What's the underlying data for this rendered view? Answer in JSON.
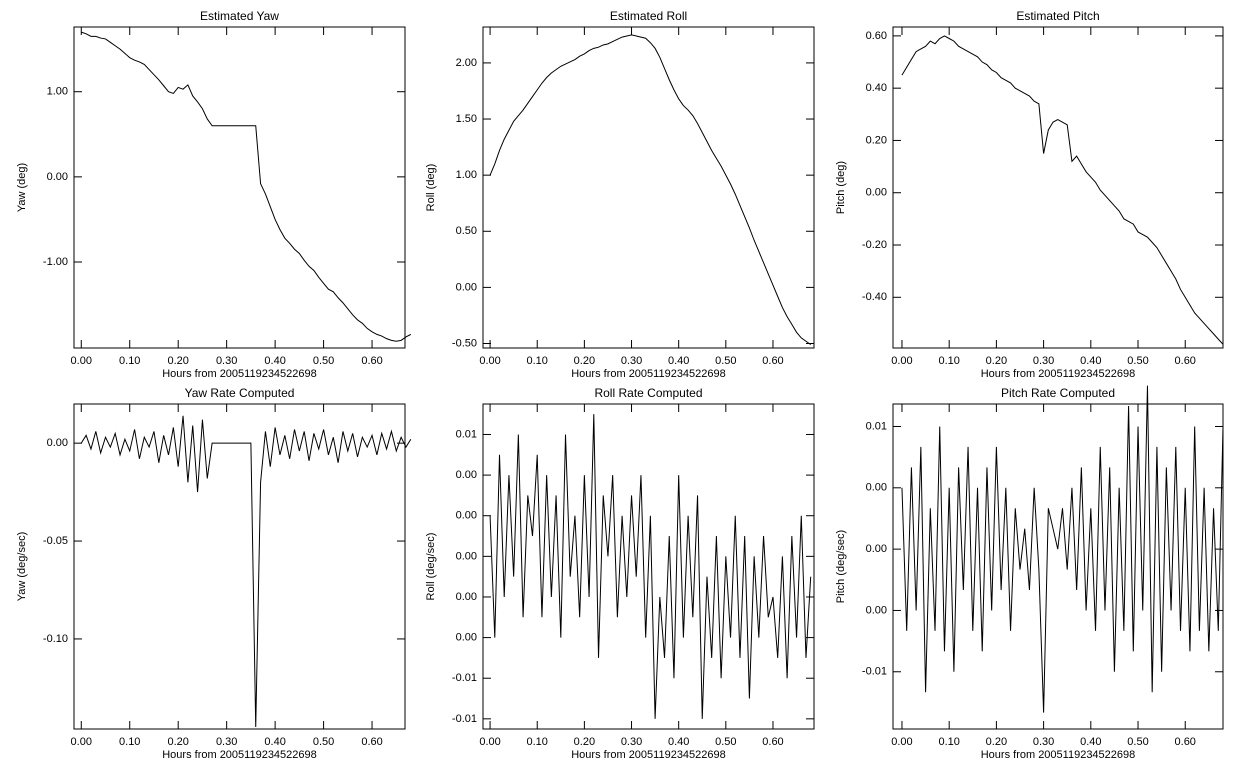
{
  "chart_data": [
    {
      "type": "line",
      "title": "Estimated Yaw",
      "xlabel": "Hours from 2005119234522698",
      "ylabel": "Yaw (deg)",
      "x": [
        0,
        0.01,
        0.02,
        0.03,
        0.04,
        0.05,
        0.06,
        0.07,
        0.08,
        0.09,
        0.1,
        0.11,
        0.12,
        0.13,
        0.14,
        0.15,
        0.16,
        0.17,
        0.18,
        0.19,
        0.2,
        0.21,
        0.22,
        0.23,
        0.24,
        0.25,
        0.26,
        0.27,
        0.28,
        0.29,
        0.3,
        0.31,
        0.32,
        0.33,
        0.34,
        0.35,
        0.36,
        0.37,
        0.38,
        0.39,
        0.4,
        0.41,
        0.42,
        0.43,
        0.44,
        0.45,
        0.46,
        0.47,
        0.48,
        0.49,
        0.5,
        0.51,
        0.52,
        0.53,
        0.54,
        0.55,
        0.56,
        0.57,
        0.58,
        0.59,
        0.6,
        0.61,
        0.62,
        0.63,
        0.64,
        0.65,
        0.66,
        0.67,
        0.68
      ],
      "values": [
        1.7,
        1.68,
        1.65,
        1.65,
        1.63,
        1.62,
        1.58,
        1.54,
        1.5,
        1.45,
        1.4,
        1.37,
        1.35,
        1.32,
        1.26,
        1.2,
        1.14,
        1.07,
        1.0,
        0.98,
        1.05,
        1.03,
        1.08,
        0.95,
        0.88,
        0.8,
        0.68,
        0.6,
        0.6,
        0.6,
        0.6,
        0.6,
        0.6,
        0.6,
        0.6,
        0.6,
        0.6,
        -0.08,
        -0.2,
        -0.35,
        -0.5,
        -0.62,
        -0.72,
        -0.78,
        -0.85,
        -0.9,
        -0.98,
        -1.05,
        -1.1,
        -1.18,
        -1.25,
        -1.32,
        -1.35,
        -1.42,
        -1.48,
        -1.55,
        -1.62,
        -1.68,
        -1.72,
        -1.78,
        -1.82,
        -1.85,
        -1.87,
        -1.9,
        -1.92,
        -1.93,
        -1.92,
        -1.88,
        -1.85
      ],
      "color": "#000000",
      "xlim": [
        -0.015,
        0.668
      ],
      "ylim": [
        -2.01,
        1.76
      ],
      "xticks": [
        {
          "value": 0,
          "label": "0.00"
        },
        {
          "value": 0.1,
          "label": "0.10"
        },
        {
          "value": 0.2,
          "label": "0.20"
        },
        {
          "value": 0.3,
          "label": "0.30"
        },
        {
          "value": 0.4,
          "label": "0.40"
        },
        {
          "value": 0.5,
          "label": "0.50"
        },
        {
          "value": 0.6,
          "label": "0.60"
        }
      ],
      "yticks": [
        {
          "value": 1,
          "label": "1.00"
        },
        {
          "value": 0,
          "label": "0.00"
        },
        {
          "value": -1,
          "label": "-1.00"
        }
      ]
    },
    {
      "type": "line",
      "title": "Estimated Roll",
      "xlabel": "Hours from 2005119234522698",
      "ylabel": "Roll (deg)",
      "x": [
        0,
        0.01,
        0.02,
        0.03,
        0.04,
        0.05,
        0.06,
        0.07,
        0.08,
        0.09,
        0.1,
        0.11,
        0.12,
        0.13,
        0.14,
        0.15,
        0.16,
        0.17,
        0.18,
        0.19,
        0.2,
        0.21,
        0.22,
        0.23,
        0.24,
        0.25,
        0.26,
        0.27,
        0.28,
        0.29,
        0.3,
        0.31,
        0.32,
        0.33,
        0.34,
        0.35,
        0.36,
        0.37,
        0.38,
        0.39,
        0.4,
        0.41,
        0.42,
        0.43,
        0.44,
        0.45,
        0.46,
        0.47,
        0.48,
        0.49,
        0.5,
        0.51,
        0.52,
        0.53,
        0.54,
        0.55,
        0.56,
        0.57,
        0.58,
        0.59,
        0.6,
        0.61,
        0.62,
        0.63,
        0.64,
        0.65,
        0.66,
        0.67,
        0.68
      ],
      "values": [
        1.0,
        1.1,
        1.22,
        1.32,
        1.4,
        1.48,
        1.53,
        1.58,
        1.64,
        1.7,
        1.76,
        1.82,
        1.87,
        1.91,
        1.94,
        1.97,
        1.99,
        2.01,
        2.03,
        2.06,
        2.08,
        2.11,
        2.13,
        2.14,
        2.16,
        2.17,
        2.19,
        2.21,
        2.23,
        2.24,
        2.25,
        2.24,
        2.23,
        2.22,
        2.18,
        2.13,
        2.05,
        1.95,
        1.85,
        1.76,
        1.68,
        1.62,
        1.58,
        1.53,
        1.46,
        1.38,
        1.3,
        1.22,
        1.15,
        1.08,
        1.0,
        0.92,
        0.83,
        0.73,
        0.63,
        0.53,
        0.42,
        0.32,
        0.22,
        0.12,
        0.02,
        -0.08,
        -0.18,
        -0.26,
        -0.33,
        -0.4,
        -0.45,
        -0.48,
        -0.51
      ],
      "color": "#000000",
      "xlim": [
        -0.015,
        0.687
      ],
      "ylim": [
        -0.54,
        2.32
      ],
      "xticks": [
        {
          "value": 0,
          "label": "0.00"
        },
        {
          "value": 0.1,
          "label": "0.10"
        },
        {
          "value": 0.2,
          "label": "0.20"
        },
        {
          "value": 0.3,
          "label": "0.30"
        },
        {
          "value": 0.4,
          "label": "0.40"
        },
        {
          "value": 0.5,
          "label": "0.50"
        },
        {
          "value": 0.6,
          "label": "0.60"
        }
      ],
      "yticks": [
        {
          "value": 2,
          "label": "2.00"
        },
        {
          "value": 1.5,
          "label": "1.50"
        },
        {
          "value": 1,
          "label": "1.00"
        },
        {
          "value": 0.5,
          "label": "0.50"
        },
        {
          "value": 0,
          "label": "0.00"
        },
        {
          "value": -0.5,
          "label": "-0.50"
        }
      ]
    },
    {
      "type": "line",
      "title": "Estimated Pitch",
      "xlabel": "Hours from 2005119234522698",
      "ylabel": "Pitch (deg)",
      "x": [
        0,
        0.01,
        0.02,
        0.03,
        0.04,
        0.05,
        0.06,
        0.07,
        0.08,
        0.09,
        0.1,
        0.11,
        0.12,
        0.13,
        0.14,
        0.15,
        0.16,
        0.17,
        0.18,
        0.19,
        0.2,
        0.21,
        0.22,
        0.23,
        0.24,
        0.25,
        0.26,
        0.27,
        0.28,
        0.29,
        0.3,
        0.31,
        0.32,
        0.33,
        0.34,
        0.35,
        0.36,
        0.37,
        0.38,
        0.39,
        0.4,
        0.41,
        0.42,
        0.43,
        0.44,
        0.45,
        0.46,
        0.47,
        0.48,
        0.49,
        0.5,
        0.51,
        0.52,
        0.53,
        0.54,
        0.55,
        0.56,
        0.57,
        0.58,
        0.59,
        0.6,
        0.61,
        0.62,
        0.63,
        0.64,
        0.65,
        0.66,
        0.67,
        0.68
      ],
      "values": [
        0.45,
        0.48,
        0.51,
        0.54,
        0.55,
        0.56,
        0.58,
        0.57,
        0.59,
        0.6,
        0.59,
        0.58,
        0.56,
        0.55,
        0.54,
        0.53,
        0.52,
        0.5,
        0.49,
        0.47,
        0.46,
        0.44,
        0.43,
        0.42,
        0.4,
        0.39,
        0.38,
        0.37,
        0.35,
        0.34,
        0.15,
        0.24,
        0.27,
        0.28,
        0.27,
        0.26,
        0.12,
        0.14,
        0.11,
        0.08,
        0.06,
        0.04,
        0.01,
        -0.01,
        -0.03,
        -0.05,
        -0.07,
        -0.1,
        -0.11,
        -0.12,
        -0.15,
        -0.16,
        -0.17,
        -0.19,
        -0.21,
        -0.24,
        -0.27,
        -0.3,
        -0.33,
        -0.37,
        -0.4,
        -0.43,
        -0.46,
        -0.48,
        -0.5,
        -0.52,
        -0.54,
        -0.56,
        -0.58
      ],
      "color": "#000000",
      "xlim": [
        -0.019,
        0.68
      ],
      "ylim": [
        -0.594,
        0.634
      ],
      "xticks": [
        {
          "value": 0,
          "label": "0.00"
        },
        {
          "value": 0.1,
          "label": "0.10"
        },
        {
          "value": 0.2,
          "label": "0.20"
        },
        {
          "value": 0.3,
          "label": "0.30"
        },
        {
          "value": 0.4,
          "label": "0.40"
        },
        {
          "value": 0.5,
          "label": "0.50"
        },
        {
          "value": 0.6,
          "label": "0.60"
        }
      ],
      "yticks": [
        {
          "value": 0.6,
          "label": "0.60"
        },
        {
          "value": 0.4,
          "label": "0.40"
        },
        {
          "value": 0.2,
          "label": "0.20"
        },
        {
          "value": 0,
          "label": "0.00"
        },
        {
          "value": -0.2,
          "label": "-0.20"
        },
        {
          "value": -0.4,
          "label": "-0.40"
        }
      ]
    },
    {
      "type": "line",
      "title": "Yaw Rate Computed",
      "xlabel": "Hours from 2005119234522698",
      "ylabel": "Yaw (deg/sec)",
      "x": [
        0,
        0.01,
        0.02,
        0.03,
        0.04,
        0.05,
        0.06,
        0.07,
        0.08,
        0.09,
        0.1,
        0.11,
        0.12,
        0.13,
        0.14,
        0.15,
        0.16,
        0.17,
        0.18,
        0.19,
        0.2,
        0.21,
        0.22,
        0.23,
        0.24,
        0.25,
        0.26,
        0.27,
        0.28,
        0.29,
        0.3,
        0.31,
        0.32,
        0.33,
        0.34,
        0.35,
        0.36,
        0.37,
        0.38,
        0.39,
        0.4,
        0.41,
        0.42,
        0.43,
        0.44,
        0.45,
        0.46,
        0.47,
        0.48,
        0.49,
        0.5,
        0.51,
        0.52,
        0.53,
        0.54,
        0.55,
        0.56,
        0.57,
        0.58,
        0.59,
        0.6,
        0.61,
        0.62,
        0.63,
        0.64,
        0.65,
        0.66,
        0.67,
        0.68
      ],
      "values": [
        0.0,
        0.004,
        -0.003,
        0.006,
        -0.005,
        0.003,
        -0.002,
        0.005,
        -0.006,
        0.002,
        -0.004,
        0.007,
        -0.008,
        0.003,
        -0.002,
        0.006,
        -0.01,
        0.004,
        -0.006,
        0.008,
        -0.012,
        0.014,
        -0.02,
        0.009,
        -0.025,
        0.012,
        -0.018,
        0.0,
        0.0,
        0.0,
        0.0,
        0.0,
        0.0,
        0.0,
        0.0,
        0.0,
        -0.145,
        -0.02,
        0.006,
        -0.012,
        0.008,
        -0.006,
        0.004,
        -0.008,
        0.007,
        -0.004,
        0.006,
        -0.009,
        0.005,
        -0.003,
        0.007,
        -0.006,
        0.003,
        -0.01,
        0.006,
        -0.004,
        0.005,
        -0.007,
        0.003,
        -0.002,
        0.004,
        -0.006,
        0.005,
        -0.003,
        0.006,
        -0.004,
        0.003,
        -0.002,
        0.002
      ],
      "color": "#000000",
      "xlim": [
        -0.015,
        0.668
      ],
      "ylim": [
        -0.146,
        0.02
      ],
      "xticks": [
        {
          "value": 0,
          "label": "0.00"
        },
        {
          "value": 0.1,
          "label": "0.10"
        },
        {
          "value": 0.2,
          "label": "0.20"
        },
        {
          "value": 0.3,
          "label": "0.30"
        },
        {
          "value": 0.4,
          "label": "0.40"
        },
        {
          "value": 0.5,
          "label": "0.50"
        },
        {
          "value": 0.6,
          "label": "0.60"
        }
      ],
      "yticks": [
        {
          "value": 0,
          "label": "0.00"
        },
        {
          "value": -0.05,
          "label": "-0.05"
        },
        {
          "value": -0.1,
          "label": "-0.10"
        }
      ]
    },
    {
      "type": "line",
      "title": "Roll Rate Computed",
      "xlabel": "Hours from 2005119234522698",
      "ylabel": "Roll (deg/sec)",
      "x": [
        0,
        0.01,
        0.02,
        0.03,
        0.04,
        0.05,
        0.06,
        0.07,
        0.08,
        0.09,
        0.1,
        0.11,
        0.12,
        0.13,
        0.14,
        0.15,
        0.16,
        0.17,
        0.18,
        0.19,
        0.2,
        0.21,
        0.22,
        0.23,
        0.24,
        0.25,
        0.26,
        0.27,
        0.28,
        0.29,
        0.3,
        0.31,
        0.32,
        0.33,
        0.34,
        0.35,
        0.36,
        0.37,
        0.38,
        0.39,
        0.4,
        0.41,
        0.42,
        0.43,
        0.44,
        0.45,
        0.46,
        0.47,
        0.48,
        0.49,
        0.5,
        0.51,
        0.52,
        0.53,
        0.54,
        0.55,
        0.56,
        0.57,
        0.58,
        0.59,
        0.6,
        0.61,
        0.62,
        0.63,
        0.64,
        0.65,
        0.66,
        0.67,
        0.68
      ],
      "values": [
        0.002,
        -0.004,
        0.005,
        -0.002,
        0.004,
        -0.001,
        0.006,
        -0.003,
        0.003,
        0.001,
        0.005,
        -0.003,
        0.004,
        -0.002,
        0.003,
        -0.004,
        0.006,
        -0.001,
        0.002,
        -0.003,
        0.004,
        -0.002,
        0.007,
        -0.005,
        0.003,
        0.0,
        0.004,
        -0.003,
        0.002,
        -0.002,
        0.003,
        -0.001,
        0.004,
        -0.004,
        0.002,
        -0.008,
        -0.002,
        -0.005,
        0.001,
        -0.006,
        0.004,
        -0.004,
        0.002,
        -0.003,
        0.003,
        -0.008,
        -0.001,
        -0.005,
        0.001,
        -0.006,
        0.0,
        -0.004,
        0.002,
        -0.005,
        0.001,
        -0.007,
        0.0,
        -0.004,
        0.001,
        -0.003,
        -0.002,
        -0.005,
        0.0,
        -0.006,
        0.001,
        -0.004,
        0.002,
        -0.005,
        -0.001
      ],
      "color": "#000000",
      "xlim": [
        -0.015,
        0.687
      ],
      "ylim": [
        -0.0085,
        0.0075
      ],
      "xticks": [
        {
          "value": 0,
          "label": "0.00"
        },
        {
          "value": 0.1,
          "label": "0.10"
        },
        {
          "value": 0.2,
          "label": "0.20"
        },
        {
          "value": 0.3,
          "label": "0.30"
        },
        {
          "value": 0.4,
          "label": "0.40"
        },
        {
          "value": 0.5,
          "label": "0.50"
        },
        {
          "value": 0.6,
          "label": "0.60"
        }
      ],
      "yticks": [
        {
          "value": 0.006,
          "label": "0.01"
        },
        {
          "value": 0.004,
          "label": "0.00"
        },
        {
          "value": 0.002,
          "label": "0.00"
        },
        {
          "value": 0,
          "label": "0.00"
        },
        {
          "value": -0.002,
          "label": "0.00"
        },
        {
          "value": -0.004,
          "label": "0.00"
        },
        {
          "value": -0.006,
          "label": "-0.01"
        },
        {
          "value": -0.008,
          "label": "-0.01"
        }
      ]
    },
    {
      "type": "line",
      "title": "Pitch Rate Computed",
      "xlabel": "Hours from 2005119234522698",
      "ylabel": "Pitch (deg/sec)",
      "x": [
        0,
        0.01,
        0.02,
        0.03,
        0.04,
        0.05,
        0.06,
        0.07,
        0.08,
        0.09,
        0.1,
        0.11,
        0.12,
        0.13,
        0.14,
        0.15,
        0.16,
        0.17,
        0.18,
        0.19,
        0.2,
        0.21,
        0.22,
        0.23,
        0.24,
        0.25,
        0.26,
        0.27,
        0.28,
        0.29,
        0.3,
        0.31,
        0.32,
        0.33,
        0.34,
        0.35,
        0.36,
        0.37,
        0.38,
        0.39,
        0.4,
        0.41,
        0.42,
        0.43,
        0.44,
        0.45,
        0.46,
        0.47,
        0.48,
        0.49,
        0.5,
        0.51,
        0.52,
        0.53,
        0.54,
        0.55,
        0.56,
        0.57,
        0.58,
        0.59,
        0.6,
        0.61,
        0.62,
        0.63,
        0.64,
        0.65,
        0.66,
        0.67,
        0.68
      ],
      "values": [
        0.003,
        -0.004,
        0.004,
        -0.003,
        0.005,
        -0.007,
        0.002,
        -0.004,
        0.006,
        -0.005,
        0.003,
        -0.006,
        0.004,
        -0.002,
        0.005,
        -0.004,
        0.003,
        -0.005,
        0.004,
        -0.003,
        0.005,
        -0.002,
        0.003,
        -0.004,
        0.002,
        -0.001,
        0.001,
        -0.002,
        0.003,
        -0.001,
        -0.008,
        0.002,
        0.001,
        0.0,
        0.002,
        -0.001,
        0.003,
        -0.002,
        0.004,
        -0.003,
        0.002,
        -0.004,
        0.005,
        -0.003,
        0.004,
        -0.006,
        0.003,
        -0.004,
        0.007,
        -0.005,
        0.006,
        -0.003,
        0.008,
        -0.007,
        0.005,
        -0.006,
        0.004,
        -0.003,
        0.005,
        -0.004,
        0.003,
        -0.005,
        0.006,
        -0.004,
        0.003,
        -0.005,
        0.002,
        -0.004,
        0.006
      ],
      "color": "#000000",
      "xlim": [
        -0.019,
        0.68
      ],
      "ylim": [
        -0.0088,
        0.0071
      ],
      "xticks": [
        {
          "value": 0,
          "label": "0.00"
        },
        {
          "value": 0.1,
          "label": "0.10"
        },
        {
          "value": 0.2,
          "label": "0.20"
        },
        {
          "value": 0.3,
          "label": "0.30"
        },
        {
          "value": 0.4,
          "label": "0.40"
        },
        {
          "value": 0.5,
          "label": "0.50"
        },
        {
          "value": 0.6,
          "label": "0.60"
        }
      ],
      "yticks": [
        {
          "value": 0.006,
          "label": "0.01"
        },
        {
          "value": 0.003,
          "label": "0.00"
        },
        {
          "value": 0,
          "label": "0.00"
        },
        {
          "value": -0.003,
          "label": "0.00"
        },
        {
          "value": -0.006,
          "label": "-0.01"
        }
      ]
    }
  ]
}
